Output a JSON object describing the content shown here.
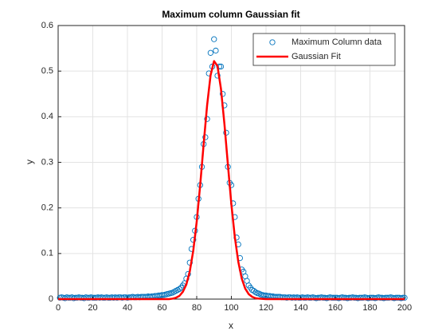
{
  "chart_data": {
    "type": "line",
    "title": "Maximum column Gaussian fit",
    "x_label": "x",
    "y_label": "y",
    "xlim": [
      0,
      200
    ],
    "xticks": [
      0,
      20,
      40,
      60,
      80,
      100,
      120,
      140,
      160,
      180,
      200
    ],
    "ylim": [
      0,
      0.6
    ],
    "yticks": [
      0,
      0.1,
      0.2,
      0.3,
      0.4,
      0.5,
      0.6
    ],
    "grid": true,
    "legend": "top-right",
    "series": [
      {
        "name": "Maximum Column data",
        "color": "#0072bd",
        "style": "markers",
        "x": [
          1,
          2,
          3,
          4,
          5,
          6,
          7,
          8,
          9,
          10,
          11,
          12,
          13,
          14,
          15,
          16,
          17,
          18,
          19,
          20,
          21,
          22,
          23,
          24,
          25,
          26,
          27,
          28,
          29,
          30,
          31,
          32,
          33,
          34,
          35,
          36,
          37,
          38,
          39,
          40,
          41,
          42,
          43,
          44,
          45,
          46,
          47,
          48,
          49,
          50,
          51,
          52,
          53,
          54,
          55,
          56,
          57,
          58,
          59,
          60,
          61,
          62,
          63,
          64,
          65,
          66,
          67,
          68,
          69,
          70,
          71,
          72,
          73,
          74,
          75,
          76,
          77,
          78,
          79,
          80,
          81,
          82,
          83,
          84,
          85,
          86,
          87,
          88,
          89,
          90,
          91,
          92,
          93,
          94,
          95,
          96,
          97,
          98,
          99,
          100,
          101,
          102,
          103,
          104,
          105,
          106,
          107,
          108,
          109,
          110,
          111,
          112,
          113,
          114,
          115,
          116,
          117,
          118,
          119,
          120,
          121,
          122,
          123,
          124,
          125,
          126,
          127,
          128,
          129,
          130,
          131,
          132,
          133,
          134,
          135,
          136,
          137,
          138,
          139,
          140,
          141,
          142,
          143,
          144,
          145,
          146,
          147,
          148,
          149,
          150,
          151,
          152,
          153,
          154,
          155,
          156,
          157,
          158,
          159,
          160,
          161,
          162,
          163,
          164,
          165,
          166,
          167,
          168,
          169,
          170,
          171,
          172,
          173,
          174,
          175,
          176,
          177,
          178,
          179,
          180,
          181,
          182,
          183,
          184,
          185,
          186,
          187,
          188,
          189,
          190,
          191,
          192,
          193,
          194,
          195,
          196,
          197,
          198,
          199,
          200
        ],
        "values": [
          0.003,
          0.004,
          0.003,
          0.002,
          0.004,
          0.003,
          0.003,
          0.004,
          0.002,
          0.003,
          0.003,
          0.004,
          0.003,
          0.003,
          0.002,
          0.004,
          0.003,
          0.003,
          0.004,
          0.003,
          0.003,
          0.003,
          0.004,
          0.003,
          0.004,
          0.003,
          0.003,
          0.004,
          0.003,
          0.003,
          0.004,
          0.003,
          0.004,
          0.003,
          0.004,
          0.004,
          0.003,
          0.004,
          0.004,
          0.003,
          0.004,
          0.004,
          0.005,
          0.004,
          0.004,
          0.005,
          0.004,
          0.005,
          0.005,
          0.005,
          0.005,
          0.006,
          0.005,
          0.006,
          0.006,
          0.007,
          0.007,
          0.008,
          0.008,
          0.009,
          0.009,
          0.01,
          0.011,
          0.012,
          0.013,
          0.014,
          0.016,
          0.018,
          0.02,
          0.022,
          0.025,
          0.03,
          0.035,
          0.045,
          0.055,
          0.08,
          0.11,
          0.13,
          0.15,
          0.18,
          0.22,
          0.25,
          0.29,
          0.34,
          0.355,
          0.395,
          0.495,
          0.54,
          0.51,
          0.57,
          0.545,
          0.49,
          0.51,
          0.51,
          0.45,
          0.425,
          0.365,
          0.29,
          0.255,
          0.25,
          0.21,
          0.18,
          0.135,
          0.12,
          0.09,
          0.065,
          0.06,
          0.05,
          0.04,
          0.03,
          0.025,
          0.02,
          0.018,
          0.015,
          0.013,
          0.012,
          0.01,
          0.009,
          0.008,
          0.008,
          0.007,
          0.007,
          0.006,
          0.006,
          0.005,
          0.005,
          0.005,
          0.005,
          0.004,
          0.004,
          0.004,
          0.003,
          0.004,
          0.004,
          0.003,
          0.004,
          0.003,
          0.004,
          0.003,
          0.003,
          0.004,
          0.003,
          0.003,
          0.004,
          0.003,
          0.003,
          0.004,
          0.003,
          0.002,
          0.003,
          0.003,
          0.004,
          0.003,
          0.003,
          0.002,
          0.003,
          0.004,
          0.003,
          0.003,
          0.003,
          0.003,
          0.002,
          0.003,
          0.004,
          0.003,
          0.003,
          0.002,
          0.003,
          0.003,
          0.004,
          0.003,
          0.003,
          0.002,
          0.003,
          0.003,
          0.003,
          0.004,
          0.003,
          0.002,
          0.003,
          0.003,
          0.003,
          0.002,
          0.003,
          0.004,
          0.003,
          0.003,
          0.002,
          0.003,
          0.003,
          0.003,
          0.004,
          0.003,
          0.002,
          0.003,
          0.003,
          0.003,
          0.002,
          0.003,
          0.003
        ]
      },
      {
        "name": "Gaussian Fit",
        "color": "#ff0000",
        "style": "line",
        "x": [
          0,
          20,
          40,
          60,
          64,
          66,
          68,
          70,
          72,
          74,
          76,
          78,
          80,
          82,
          84,
          86,
          88,
          90,
          92,
          94,
          96,
          98,
          100,
          102,
          104,
          106,
          108,
          110,
          112,
          114,
          116,
          120,
          140,
          160,
          180,
          200
        ],
        "values": [
          0,
          0,
          0,
          0,
          0,
          0.001,
          0.003,
          0.007,
          0.016,
          0.032,
          0.061,
          0.106,
          0.17,
          0.25,
          0.34,
          0.425,
          0.491,
          0.522,
          0.511,
          0.461,
          0.384,
          0.295,
          0.208,
          0.136,
          0.082,
          0.045,
          0.023,
          0.011,
          0.005,
          0.002,
          0.001,
          0,
          0,
          0,
          0,
          0
        ]
      }
    ]
  }
}
